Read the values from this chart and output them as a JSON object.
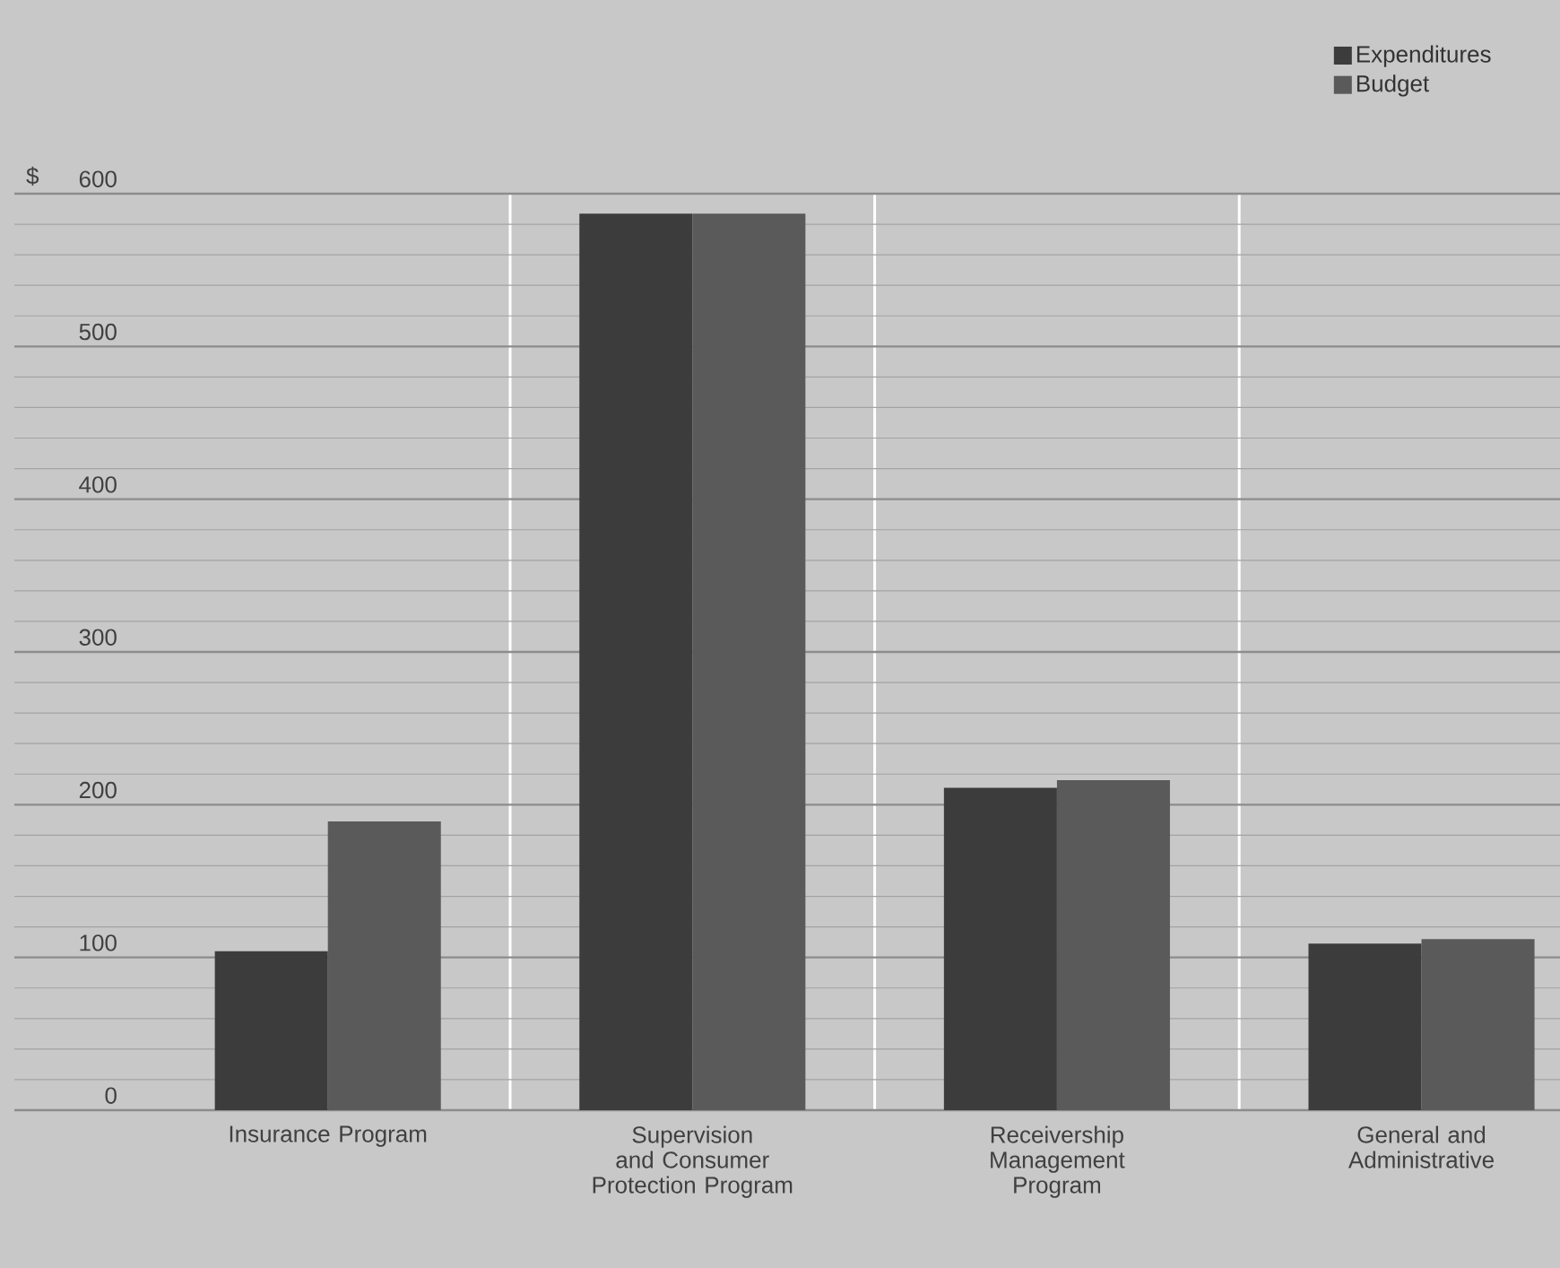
{
  "chart_data": {
    "type": "bar",
    "ylabel": "$",
    "categories": [
      "Insurance Program",
      "Supervision and Consumer Protection Program",
      "Receivership Management Program",
      "General and Administrative"
    ],
    "series": [
      {
        "name": "Expenditures",
        "color": "#3c3c3c",
        "values": [
          104,
          587,
          211,
          109
        ]
      },
      {
        "name": "Budget",
        "color": "#5a5a5a",
        "values": [
          189,
          587,
          216,
          112
        ]
      }
    ],
    "ylim": [
      0,
      600
    ],
    "yticks": [
      0,
      100,
      200,
      300,
      400,
      500,
      600
    ],
    "grid": "y",
    "legend": "top right"
  }
}
